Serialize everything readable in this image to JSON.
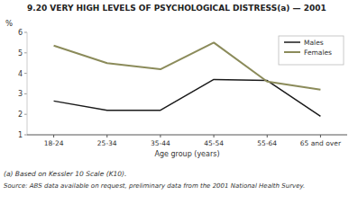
{
  "chart_data": {
    "type": "line",
    "title": "9.20  VERY HIGH LEVELS OF PSYCHOLOGICAL DISTRESS(a) — 2001",
    "xlabel": "Age group (years)",
    "ylabel": "%",
    "categories": [
      "18-24",
      "25-34",
      "35-44",
      "45-54",
      "55-64",
      "65 and over"
    ],
    "series": [
      {
        "name": "Males",
        "color": "#1a1a1a",
        "values": [
          2.65,
          2.2,
          2.2,
          3.7,
          3.65,
          1.9
        ]
      },
      {
        "name": "Females",
        "color": "#8b8b5a",
        "values": [
          5.35,
          4.5,
          4.2,
          5.5,
          3.6,
          3.2
        ]
      }
    ],
    "ylim": [
      1,
      6
    ],
    "yticks": [
      1,
      2,
      3,
      4,
      5,
      6
    ],
    "grid": false,
    "legend": "upper right",
    "annotations": [
      "(a) Based on Kessler 10 Scale (K10).",
      "Source: ABS data available on request, preliminary data from the 2001 National Health Survey."
    ]
  }
}
